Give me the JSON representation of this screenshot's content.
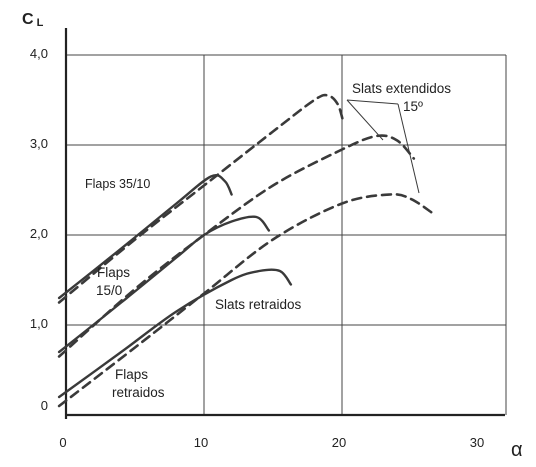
{
  "chart_data": {
    "type": "line",
    "ylabel": "C",
    "ylabel_sub": "L",
    "xlabel": "α",
    "xlim": [
      0,
      30
    ],
    "ylim": [
      0,
      4.0
    ],
    "x_ticks": [
      "0",
      "10",
      "20",
      "30"
    ],
    "x_tick_values": [
      0,
      10,
      20,
      30
    ],
    "y_ticks": [
      "0",
      "1,0",
      "2,0",
      "3,0",
      "4,0"
    ],
    "y_tick_values": [
      0,
      1,
      2,
      3,
      4
    ],
    "grid": true,
    "annotations": {
      "slats_extended": [
        "Slats extendidos",
        "15º"
      ],
      "slats_retracted": "Slats retraidos",
      "flaps_35_10": "Flaps 35/10",
      "flaps_15_0": [
        "Flaps",
        "15/0"
      ],
      "flaps_retracted": [
        "Flaps",
        "retraidos"
      ]
    },
    "series": [
      {
        "style": "solid",
        "x": [
          -0.5,
          4,
          8,
          10.5,
          11.5,
          12
        ],
        "y": [
          1.3,
          1.85,
          2.35,
          2.65,
          2.6,
          2.45
        ]
      },
      {
        "style": "dashed",
        "x": [
          -0.5,
          5,
          10,
          15,
          18,
          19,
          19.7,
          20.1
        ],
        "y": [
          1.25,
          1.95,
          2.55,
          3.15,
          3.5,
          3.55,
          3.45,
          3.25
        ]
      },
      {
        "style": "solid",
        "x": [
          -0.5,
          4,
          8,
          10,
          12,
          13.8,
          14.7
        ],
        "y": [
          0.7,
          1.25,
          1.75,
          2.0,
          2.15,
          2.2,
          2.05
        ]
      },
      {
        "style": "dashed",
        "x": [
          -0.5,
          5,
          10,
          15,
          20,
          22.5,
          24,
          25.2
        ],
        "y": [
          0.65,
          1.4,
          2.0,
          2.55,
          2.95,
          3.1,
          3.05,
          2.85
        ]
      },
      {
        "style": "solid",
        "x": [
          -0.5,
          4,
          8,
          12,
          14,
          15.5,
          16.3
        ],
        "y": [
          0.2,
          0.7,
          1.15,
          1.5,
          1.6,
          1.6,
          1.45
        ]
      },
      {
        "style": "dashed",
        "x": [
          -0.5,
          5,
          10,
          15,
          20,
          23.5,
          25,
          26.5
        ],
        "y": [
          0.1,
          0.75,
          1.35,
          1.95,
          2.35,
          2.45,
          2.4,
          2.25
        ]
      }
    ]
  },
  "colors": {
    "line": "#3a3a3a",
    "grid": "#444444",
    "axis": "#222222",
    "text": "#222222"
  }
}
